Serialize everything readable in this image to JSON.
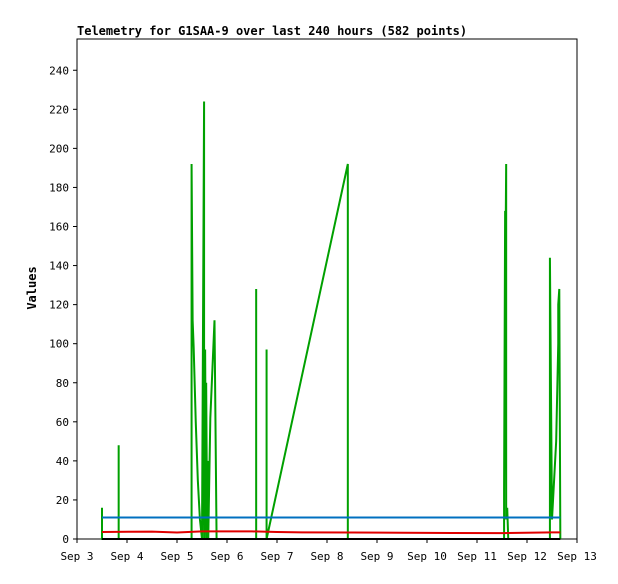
{
  "chart_data": {
    "type": "line",
    "title": "Telemetry for G1SAA-9 over last 240 hours (582 points)",
    "xlabel": "",
    "ylabel": "Values",
    "ylim": [
      0,
      256
    ],
    "xlim": [
      "2023-09-03",
      "2023-09-13"
    ],
    "yticks": [
      0,
      20,
      40,
      60,
      80,
      100,
      120,
      140,
      160,
      180,
      200,
      220,
      240
    ],
    "xticks": [
      "2023-09-03",
      "2023-09-04",
      "2023-09-05",
      "2023-09-06",
      "2023-09-07",
      "2023-09-08",
      "2023-09-09",
      "2023-09-10",
      "2023-09-11",
      "2023-09-12",
      "2023-09-13"
    ],
    "xtick_labels": [
      "Sep 3",
      "Sep 4",
      "Sep 5",
      "Sep 6",
      "Sep 7",
      "Sep 8",
      "Sep 9",
      "Sep 10",
      "Sep 11",
      "Sep 12",
      "Sep 13"
    ],
    "grid": false,
    "legend": "none",
    "series": [
      {
        "color": "#00a000",
        "x": [
          "2023-09-03 12:00",
          "2023-09-03 12:00",
          "2023-09-03 12:00",
          "2023-09-03 20:00",
          "2023-09-03 20:00",
          "2023-09-03 20:00",
          "2023-09-05 07:00",
          "2023-09-05 07:00",
          "2023-09-05 07:30",
          "2023-09-05 08:00",
          "2023-09-05 09:00",
          "2023-09-05 10:00",
          "2023-09-05 11:00",
          "2023-09-05 12:00",
          "2023-09-05 13:00",
          "2023-09-05 13:00",
          "2023-09-05 13:30",
          "2023-09-05 14:00",
          "2023-09-05 14:00",
          "2023-09-05 14:30",
          "2023-09-05 15:00",
          "2023-09-05 15:00",
          "2023-09-05 16:00",
          "2023-09-05 18:00",
          "2023-09-05 19:00",
          "2023-09-05 19:00",
          "2023-09-05 19:00",
          "2023-09-06 14:00",
          "2023-09-06 14:00",
          "2023-09-06 14:00",
          "2023-09-06 19:00",
          "2023-09-06 19:00",
          "2023-09-06 19:00",
          "2023-09-08 10:00",
          "2023-09-08 10:00",
          "2023-09-11 13:00",
          "2023-09-11 13:00",
          "2023-09-11 13:30",
          "2023-09-11 13:30",
          "2023-09-11 14:00",
          "2023-09-11 14:00",
          "2023-09-11 14:30",
          "2023-09-11 15:00",
          "2023-09-11 15:00",
          "2023-09-12 11:00",
          "2023-09-12 11:00",
          "2023-09-12 12:00",
          "2023-09-12 14:00",
          "2023-09-12 15:00",
          "2023-09-12 15:00",
          "2023-09-12 15:30",
          "2023-09-12 16:00",
          "2023-09-12 16:00"
        ],
        "values": [
          0,
          16,
          0,
          0,
          48,
          0,
          0,
          192,
          112,
          98,
          60,
          30,
          10,
          0,
          224,
          0,
          97,
          0,
          80,
          0,
          40,
          0,
          62,
          112,
          0,
          0,
          0,
          0,
          128,
          0,
          0,
          97,
          0,
          192,
          0,
          0,
          25,
          168,
          120,
          192,
          10,
          16,
          0,
          0,
          0,
          144,
          10,
          50,
          100,
          120,
          128,
          0,
          0
        ]
      },
      {
        "color": "#e00000",
        "x": [
          "2023-09-03 12:00",
          "2023-09-04 12:00",
          "2023-09-05 00:00",
          "2023-09-05 12:00",
          "2023-09-06 12:00",
          "2023-09-07 00:00",
          "2023-09-07 12:00",
          "2023-09-08 12:00",
          "2023-09-09 12:00",
          "2023-09-10 12:00",
          "2023-09-11 12:00",
          "2023-09-12 12:00",
          "2023-09-12 16:00"
        ],
        "values": [
          3.6,
          3.8,
          3.3,
          3.9,
          3.9,
          3.6,
          3.4,
          3.3,
          3.2,
          3.1,
          3.0,
          3.4,
          3.4
        ]
      },
      {
        "color": "#0070c0",
        "x": [
          "2023-09-03 12:00",
          "2023-09-12 16:00"
        ],
        "values": [
          11,
          11
        ]
      },
      {
        "color": "#000000",
        "x": [
          "2023-09-03 12:00",
          "2023-09-12 16:00"
        ],
        "values": [
          0,
          0
        ]
      }
    ]
  }
}
